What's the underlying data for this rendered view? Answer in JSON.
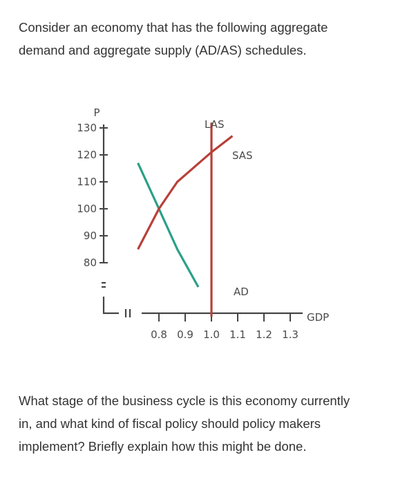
{
  "text": {
    "intro_line1": "Consider an economy that has the following aggregate",
    "intro_line2": "demand and aggregate supply (AD/AS) schedules.",
    "question_line1": "What stage of the business cycle is this economy currently",
    "question_line2": "in, and what kind of fiscal policy should policy makers",
    "question_line3": "implement? Briefly explain how this might be done."
  },
  "chart_data": {
    "type": "line",
    "xlabel": "GDP",
    "ylabel": "P",
    "x_ticks": [
      "0.8",
      "0.9",
      "1.0",
      "1.1",
      "1.2",
      "1.3"
    ],
    "y_ticks": [
      "130",
      "120",
      "110",
      "100",
      "90",
      "80"
    ],
    "xlim": [
      0.8,
      1.3
    ],
    "ylim": [
      80,
      130
    ],
    "axis_breaks": true,
    "series": [
      {
        "name": "AD",
        "color": "#2aa088",
        "points": [
          [
            0.72,
            117
          ],
          [
            0.8,
            100
          ],
          [
            0.87,
            85
          ],
          [
            0.95,
            71
          ]
        ]
      },
      {
        "name": "SAS",
        "color": "#b84038",
        "points": [
          [
            0.72,
            85
          ],
          [
            0.8,
            100
          ],
          [
            0.87,
            110
          ],
          [
            1.0,
            121
          ],
          [
            1.08,
            127
          ]
        ]
      },
      {
        "name": "LAS",
        "color": "#b84038",
        "points": [
          [
            1.0,
            60
          ],
          [
            1.0,
            132
          ]
        ]
      }
    ]
  }
}
